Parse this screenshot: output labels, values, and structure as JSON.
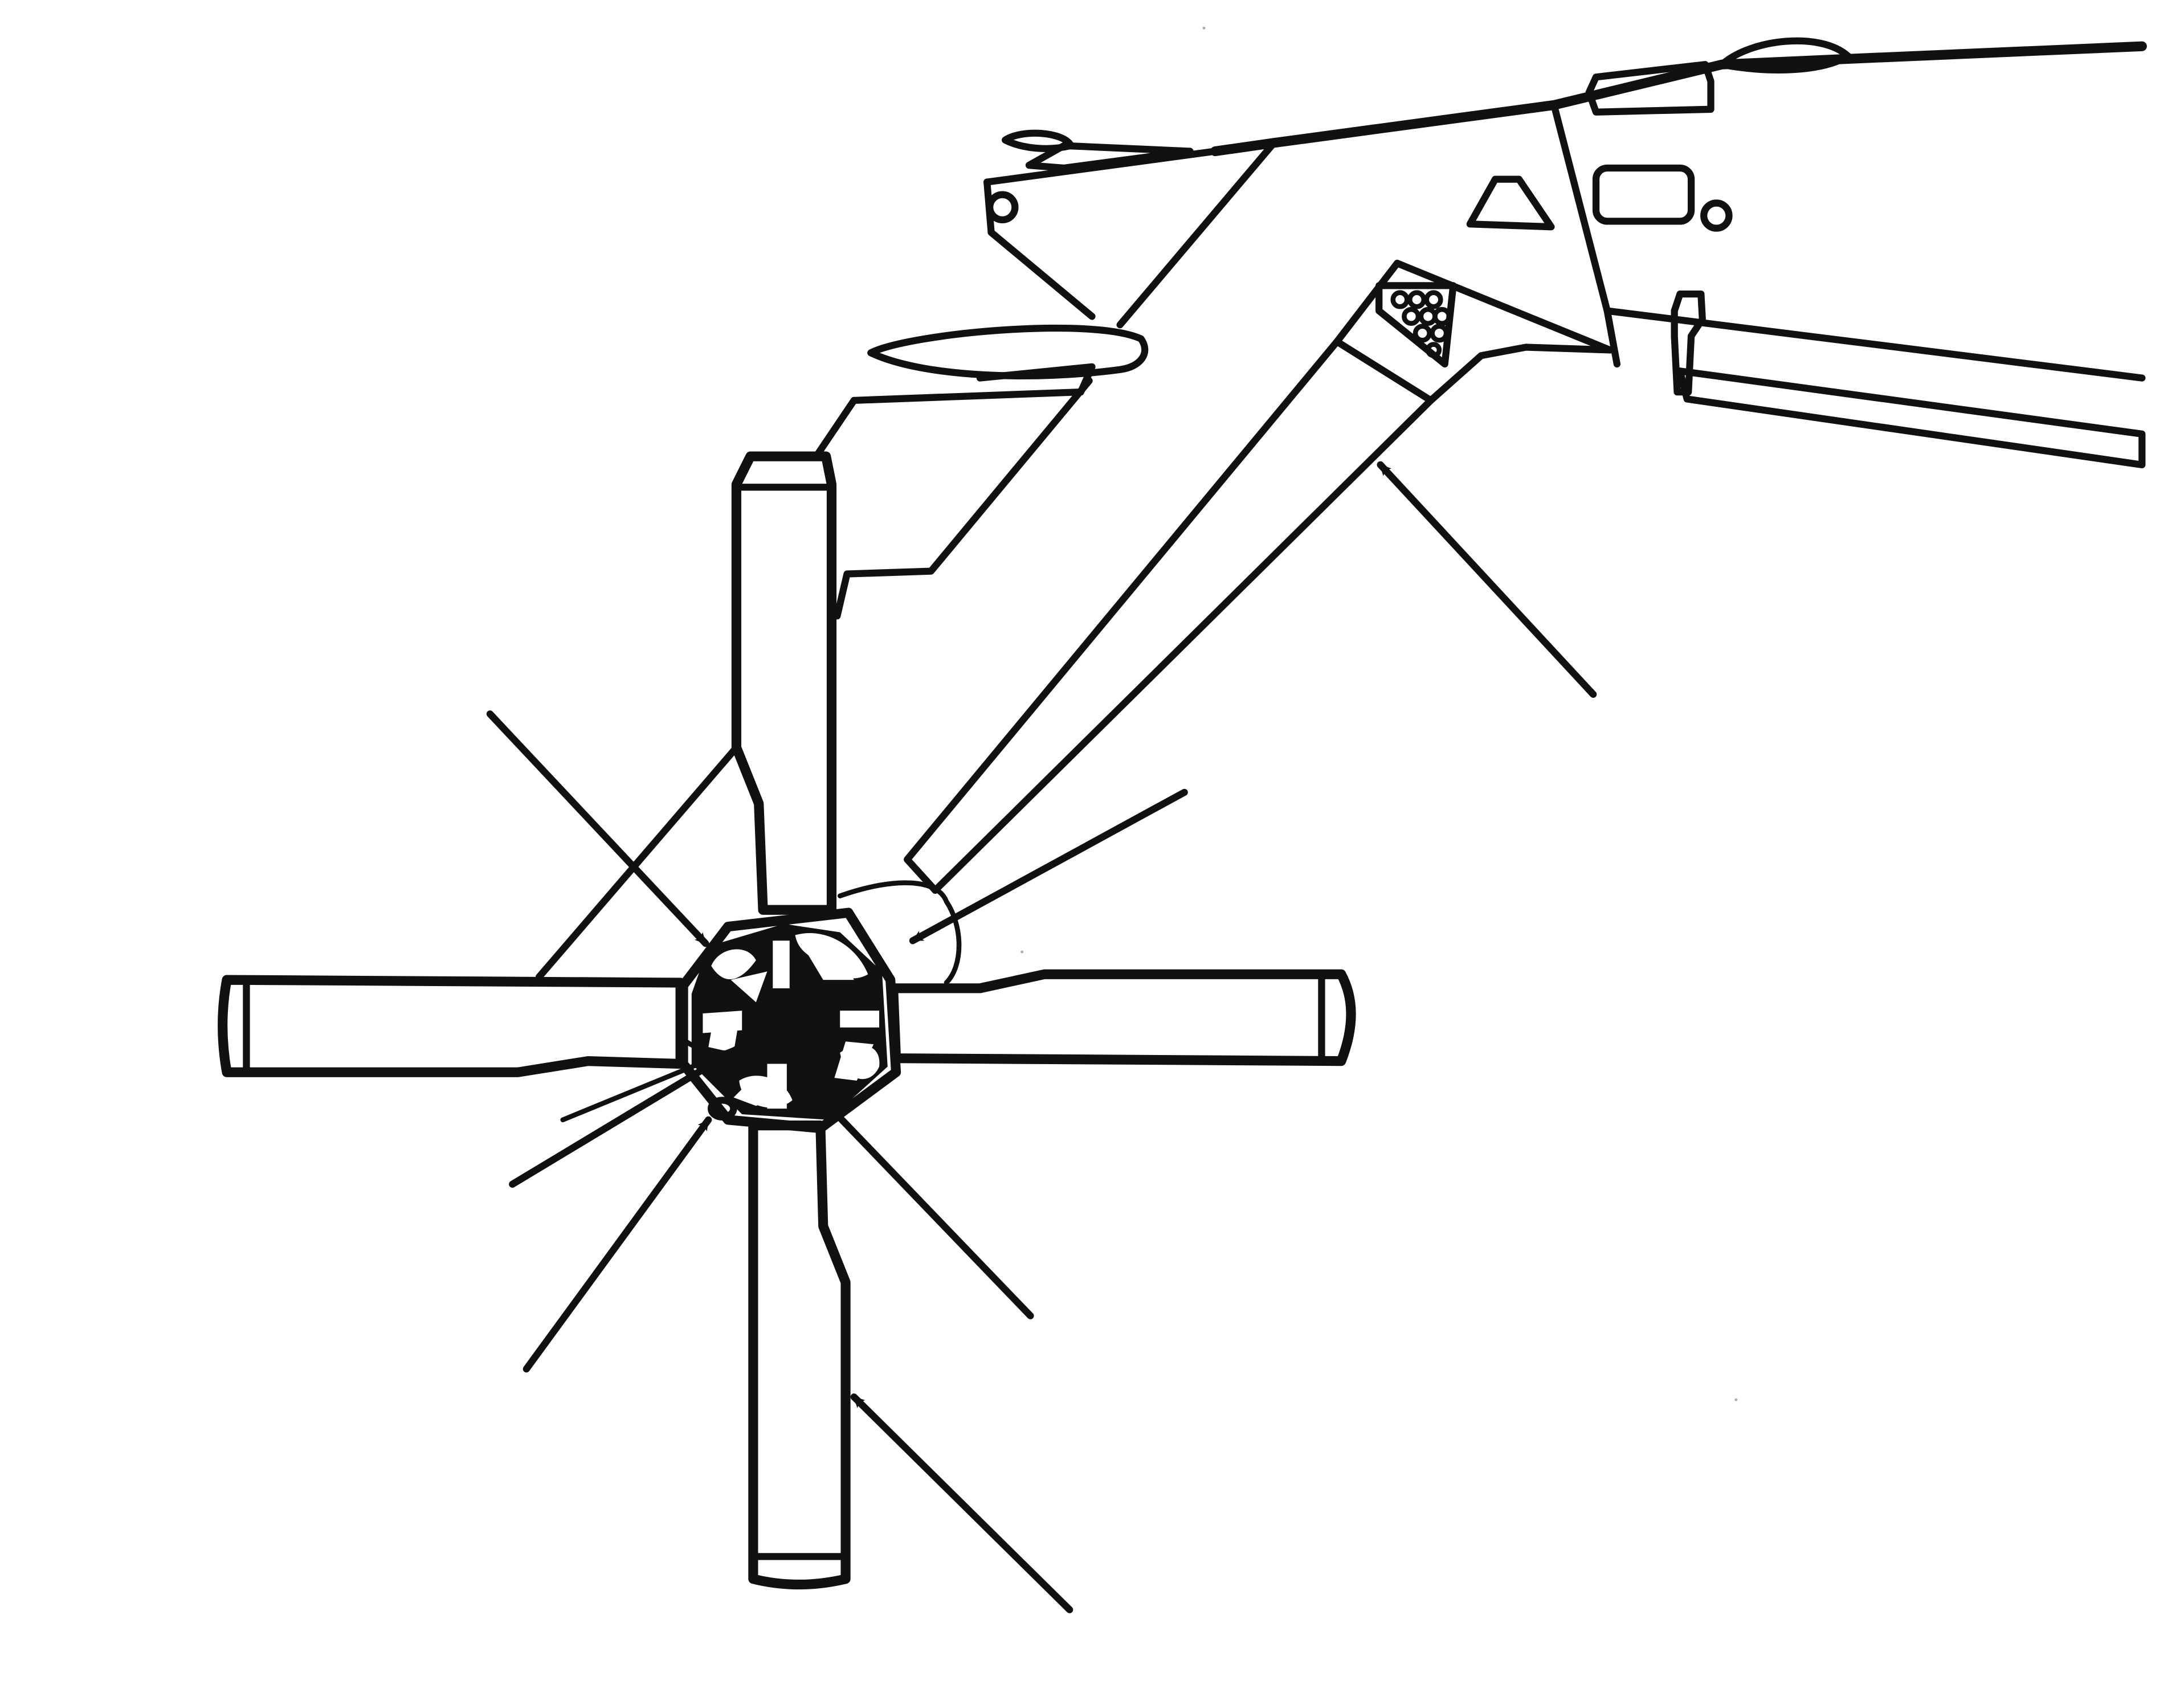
{
  "figure": {
    "kind": "line-drawing",
    "subject": "tail-rotor-assembly",
    "rotor_blade_count": 4,
    "callout_arrow_count": 8,
    "colors": {
      "ink": "#111111",
      "background": "#ffffff"
    }
  }
}
